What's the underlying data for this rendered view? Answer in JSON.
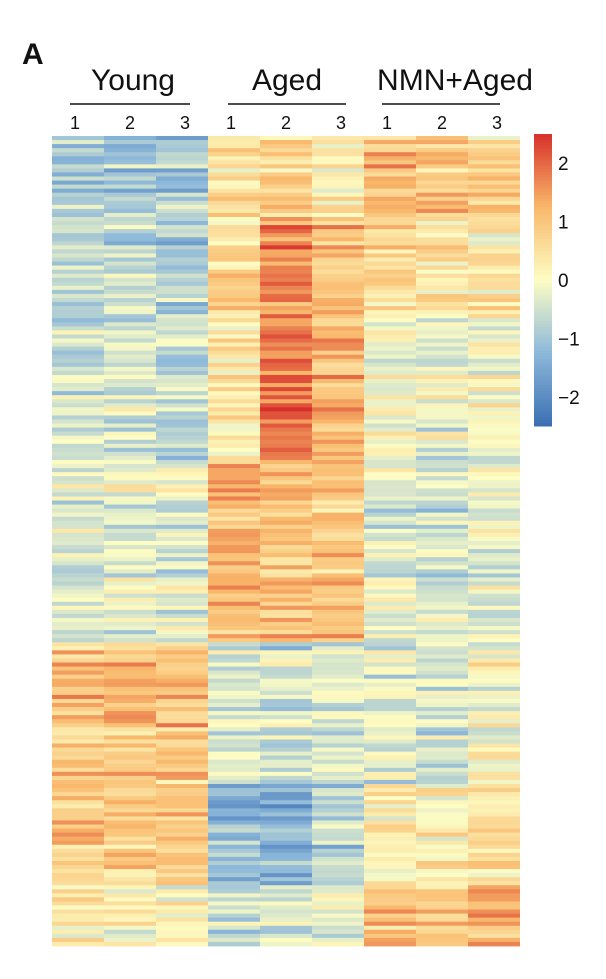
{
  "panel_label": "A",
  "chart_data": {
    "type": "heatmap",
    "title": "",
    "xlabel": "",
    "ylabel": "",
    "groups": [
      {
        "name": "Young",
        "samples": [
          "1",
          "2",
          "3"
        ]
      },
      {
        "name": "Aged",
        "samples": [
          "1",
          "2",
          "3"
        ]
      },
      {
        "name": "NMN+Aged",
        "samples": [
          "1",
          "2",
          "3"
        ]
      }
    ],
    "value_range": [
      -2.5,
      2.5
    ],
    "colorbar": {
      "ticks": [
        2,
        1,
        0,
        -1,
        -2
      ],
      "tick_labels": [
        "2",
        "1",
        "0",
        "−1",
        "−2"
      ],
      "placement": "right"
    },
    "colorscale": [
      "#3a6fb3",
      "#8db8da",
      "#fdfdc4",
      "#f9b86b",
      "#d7302a"
    ],
    "n_rows": 200,
    "row_blocks": [
      {
        "rows": [
          0,
          20
        ],
        "column_means": [
          -0.9,
          -0.9,
          -1.0,
          0.5,
          0.7,
          0.3,
          1.1,
          1.0,
          0.7
        ]
      },
      {
        "rows": [
          20,
          45
        ],
        "column_means": [
          -0.6,
          -0.6,
          -0.8,
          0.6,
          1.6,
          1.1,
          0.6,
          0.4,
          0.3
        ]
      },
      {
        "rows": [
          45,
          80
        ],
        "column_means": [
          -0.5,
          -0.5,
          -0.6,
          0.4,
          2.0,
          1.2,
          0.0,
          -0.2,
          0.0
        ]
      },
      {
        "rows": [
          80,
          125
        ],
        "column_means": [
          -0.4,
          -0.3,
          -0.3,
          1.2,
          1.0,
          1.0,
          -0.3,
          -0.5,
          -0.3
        ]
      },
      {
        "rows": [
          125,
          160
        ],
        "column_means": [
          1.0,
          1.1,
          1.0,
          -0.4,
          -0.5,
          -0.3,
          -0.3,
          -0.4,
          0.0
        ]
      },
      {
        "rows": [
          160,
          185
        ],
        "column_means": [
          1.0,
          1.0,
          1.0,
          -1.1,
          -1.3,
          -0.8,
          0.3,
          0.2,
          0.5
        ]
      },
      {
        "rows": [
          185,
          200
        ],
        "column_means": [
          0.4,
          0.0,
          0.0,
          -0.6,
          -0.6,
          -0.3,
          1.1,
          0.9,
          1.2
        ]
      }
    ]
  }
}
